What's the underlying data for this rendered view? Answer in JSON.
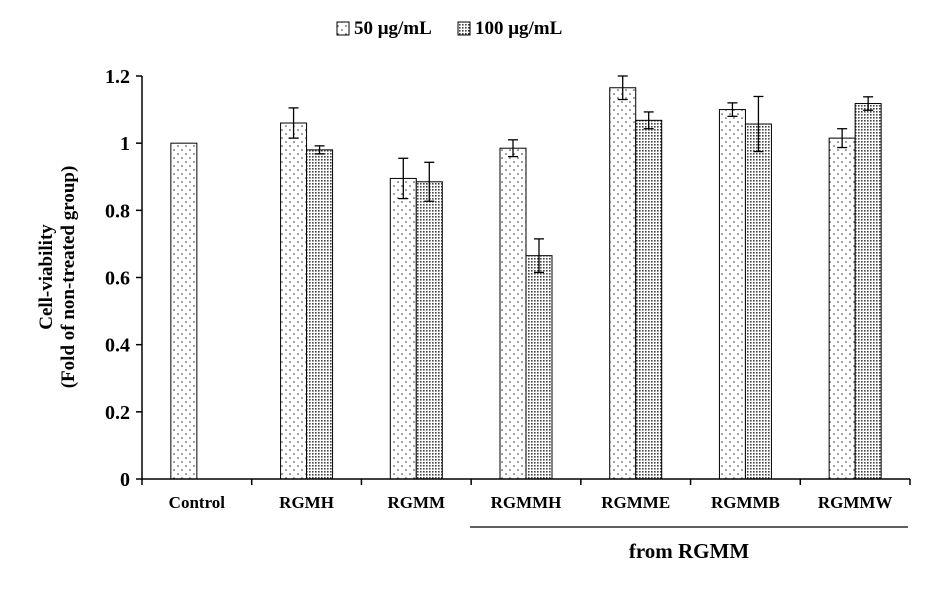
{
  "chart_data": {
    "type": "bar",
    "title": "",
    "xlabel": "",
    "ylabel": "Cell-viability",
    "ylabel_sub": "(Fold of non-treated group)",
    "ylim": [
      0,
      1.2
    ],
    "yticks": [
      0,
      0.2,
      0.4,
      0.6,
      0.8,
      1,
      1.2
    ],
    "ytick_labels": [
      "0",
      "0.2",
      "0.4",
      "0.6",
      "0.8",
      "1",
      "1.2"
    ],
    "categories": [
      "Control",
      "RGMH",
      "RGMM",
      "RGMMH",
      "RGMME",
      "RGMMB",
      "RGMMW"
    ],
    "group_label": "from RGMM",
    "group_categories": [
      "RGMMH",
      "RGMME",
      "RGMMB",
      "RGMMW"
    ],
    "legend_position": "top-center",
    "series": [
      {
        "name": "50 μg/mL",
        "pattern": "sparse-dots",
        "values": [
          1.0,
          1.06,
          0.895,
          0.985,
          1.165,
          1.1,
          1.015
        ],
        "errors": [
          0,
          0.045,
          0.06,
          0.025,
          0.035,
          0.02,
          0.028
        ]
      },
      {
        "name": "100 μg/mL",
        "pattern": "dense-dots",
        "values": [
          null,
          0.98,
          0.885,
          0.665,
          1.068,
          1.057,
          1.118
        ],
        "errors": [
          0,
          0.012,
          0.058,
          0.05,
          0.025,
          0.082,
          0.02
        ]
      }
    ],
    "grid": false
  }
}
